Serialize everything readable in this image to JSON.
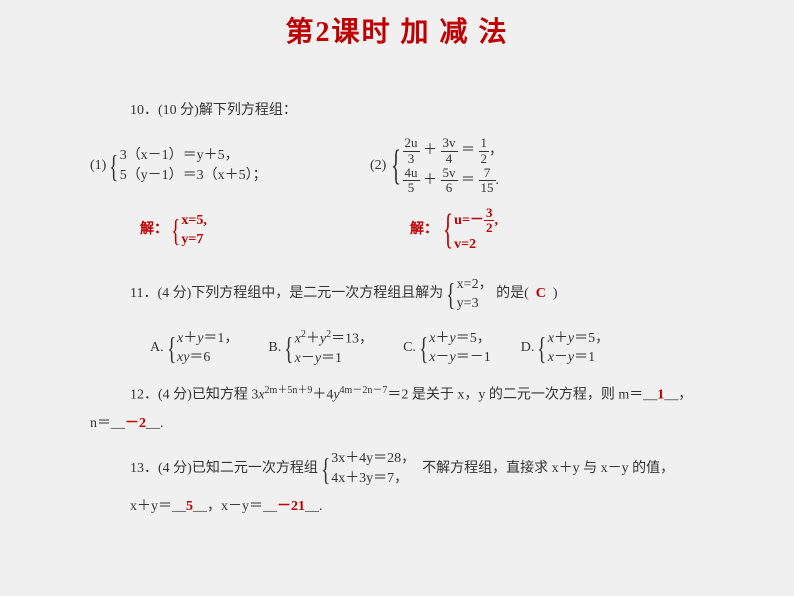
{
  "title": "第2课时 加  减  法",
  "q10": {
    "head": "10．(10 分)解下列方程组：",
    "p1_label": "(1)",
    "p1_eq1": "3（x－1）＝y＋5，",
    "p1_eq2": "5（y－1）＝3（x＋5）；",
    "p2_label": "(2)",
    "p2_eq1_a": "2u",
    "p2_eq1_b": "3",
    "p2_eq1_c": "3v",
    "p2_eq1_d": "4",
    "p2_eq1_e": "1",
    "p2_eq1_f": "2",
    "p2_eq2_a": "4u",
    "p2_eq2_b": "5",
    "p2_eq2_c": "5v",
    "p2_eq2_d": "6",
    "p2_eq2_e": "7",
    "p2_eq2_f": "15",
    "sol1_label": "解：",
    "sol1_a": "x=5,",
    "sol1_b": "y=7",
    "sol2_label": "解：",
    "sol2_a_lhs": "u=－",
    "sol2_a_num": "3",
    "sol2_a_den": "2",
    "sol2_a_tail": ",",
    "sol2_b": "v=2"
  },
  "q11": {
    "head_a": "11．(4 分)下列方程组中，是二元一次方程组且解为",
    "sol_a": "x=2，",
    "sol_b": "y=3",
    "head_b": "的是(",
    "answer": "C",
    "head_c": ")",
    "A_label": "A.",
    "A1": "x＋y＝1，",
    "A2": "xy＝6",
    "B_label": "B.",
    "B1a": "x",
    "B1b": "＋y",
    "B1c": "＝13，",
    "B2": "x－y＝1",
    "C_label": "C.",
    "C1": "x＋y＝5，",
    "C2": "x－y＝－1",
    "D_label": "D.",
    "D1": "x＋y＝5，",
    "D2": "x－y＝1"
  },
  "q12": {
    "line1_a": "12．(4 分)已知方程 3",
    "line1_b": "x",
    "line1_exp1": "2m＋5n＋9",
    "line1_c": "＋4",
    "line1_d": "y",
    "line1_exp2": "4m－2n－7",
    "line1_e": "＝2 是关于 x，y 的二元一次方程，则 m＝__",
    "ans_m": "1",
    "line1_f": "__，",
    "line2_a": "n＝__",
    "ans_n": "－2",
    "line2_b": "__."
  },
  "q13": {
    "head_a": "13．(4 分)已知二元一次方程组",
    "eq1": "3x＋4y＝28，",
    "eq2": "4x＋3y＝7，",
    "head_b": "不解方程组，直接求 x＋y 与 x－y 的值，",
    "line2_a": "x＋y＝__",
    "ans1": "5",
    "line2_b": "__，x－y＝__",
    "ans2": "－21",
    "line2_c": "__."
  }
}
